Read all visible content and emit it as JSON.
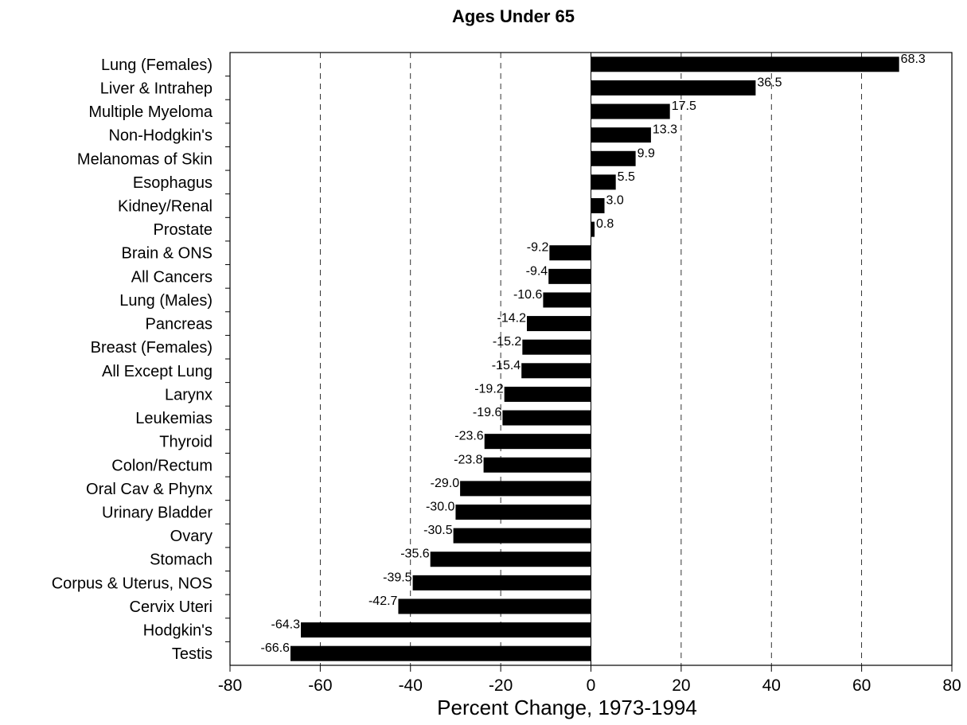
{
  "chart_data": {
    "type": "bar",
    "orientation": "horizontal",
    "title": "Ages Under 65",
    "xlabel": "Percent Change, 1973-1994",
    "ylabel": "",
    "xlim": [
      -80,
      80
    ],
    "xticks": [
      "-80",
      "-60",
      "-40",
      "-20",
      "0",
      "20",
      "40",
      "60",
      "80"
    ],
    "grid": "vertical dashed at -60, -40, -20, 20, 40, 60",
    "bar_color": "#000000",
    "categories": [
      "Lung (Females)",
      "Liver & Intrahep",
      "Multiple Myeloma",
      "Non-Hodgkin's",
      "Melanomas of Skin",
      "Esophagus",
      "Kidney/Renal",
      "Prostate",
      "Brain & ONS",
      "All Cancers",
      "Lung (Males)",
      "Pancreas",
      "Breast (Females)",
      "All Except Lung",
      "Larynx",
      "Leukemias",
      "Thyroid",
      "Colon/Rectum",
      "Oral Cav & Phynx",
      "Urinary Bladder",
      "Ovary",
      "Stomach",
      "Corpus & Uterus, NOS",
      "Cervix Uteri",
      "Hodgkin's",
      "Testis"
    ],
    "values": [
      68.3,
      36.5,
      17.5,
      13.3,
      9.9,
      5.5,
      3.0,
      0.8,
      -9.2,
      -9.4,
      -10.6,
      -14.2,
      -15.2,
      -15.4,
      -19.2,
      -19.6,
      -23.6,
      -23.8,
      -29.0,
      -30.0,
      -30.5,
      -35.6,
      -39.5,
      -42.7,
      -64.3,
      -66.6
    ],
    "value_labels": [
      "68.3",
      "36.5",
      "17.5",
      "13.3",
      "9.9",
      "5.5",
      "3.0",
      "0.8",
      "-9.2",
      "-9.4",
      "-10.6",
      "-14.2",
      "-15.2",
      "-15.4",
      "-19.2",
      "-19.6",
      "-23.6",
      "-23.8",
      "-29.0",
      "-30.0",
      "-30.5",
      "-35.6",
      "-39.5",
      "-42.7",
      "-64.3",
      "-66.6"
    ]
  }
}
